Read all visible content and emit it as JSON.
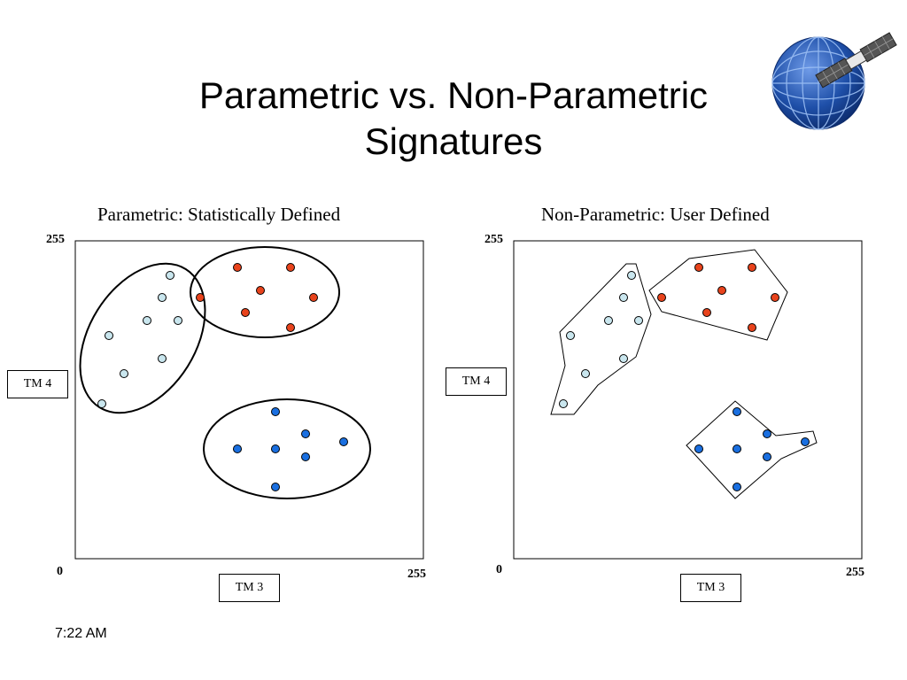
{
  "slide": {
    "title": "Parametric vs. Non-Parametric Signatures",
    "time": "7:22 AM"
  },
  "left_panel": {
    "title": "Parametric: Statistically Defined",
    "y_max": "255",
    "origin": "0",
    "x_max": "255",
    "y_axis_label": "TM 4",
    "x_axis_label": "TM 3"
  },
  "right_panel": {
    "title": "Non-Parametric: User Defined",
    "y_max": "255",
    "origin": "0",
    "x_max": "255",
    "y_axis_label": "TM 4",
    "x_axis_label": "TM 3"
  },
  "colors": {
    "light_blue": "#c9e6ee",
    "red": "#e8431c",
    "blue": "#1a6fe0",
    "globe": "#1e4fa8"
  },
  "icons": [
    "satellite-globe-icon"
  ]
}
